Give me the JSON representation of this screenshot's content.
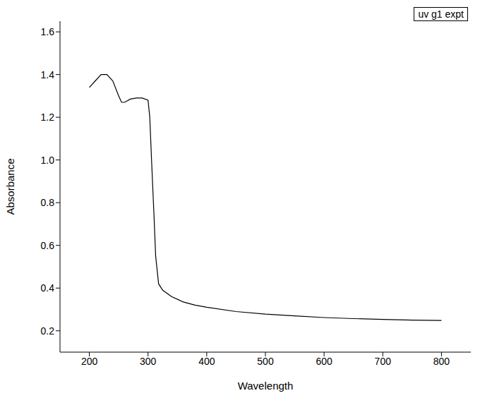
{
  "chart_data": {
    "type": "line",
    "x_label": "Wavelength",
    "y_label": "Absorbance",
    "x": [
      200,
      210,
      220,
      230,
      240,
      250,
      255,
      260,
      270,
      280,
      290,
      300,
      303,
      306,
      310,
      313,
      318,
      325,
      340,
      360,
      380,
      400,
      450,
      500,
      550,
      600,
      650,
      700,
      750,
      800
    ],
    "series": [
      {
        "name": "uv g1 expt",
        "color": "#000000",
        "values": [
          1.34,
          1.37,
          1.4,
          1.4,
          1.37,
          1.3,
          1.27,
          1.27,
          1.285,
          1.29,
          1.29,
          1.28,
          1.2,
          1.0,
          0.75,
          0.55,
          0.42,
          0.39,
          0.36,
          0.335,
          0.32,
          0.31,
          0.29,
          0.278,
          0.27,
          0.262,
          0.257,
          0.253,
          0.25,
          0.248
        ]
      }
    ],
    "xlim": [
      150,
      850
    ],
    "ylim": [
      0.1,
      1.65
    ],
    "xticks": [
      200,
      300,
      400,
      500,
      600,
      700,
      800
    ],
    "yticks": [
      0.2,
      0.4,
      0.6,
      0.8,
      {
        "value": 1,
        "label": "1.0"
      },
      1.2,
      1.4,
      1.6
    ],
    "legend": "upper right"
  }
}
